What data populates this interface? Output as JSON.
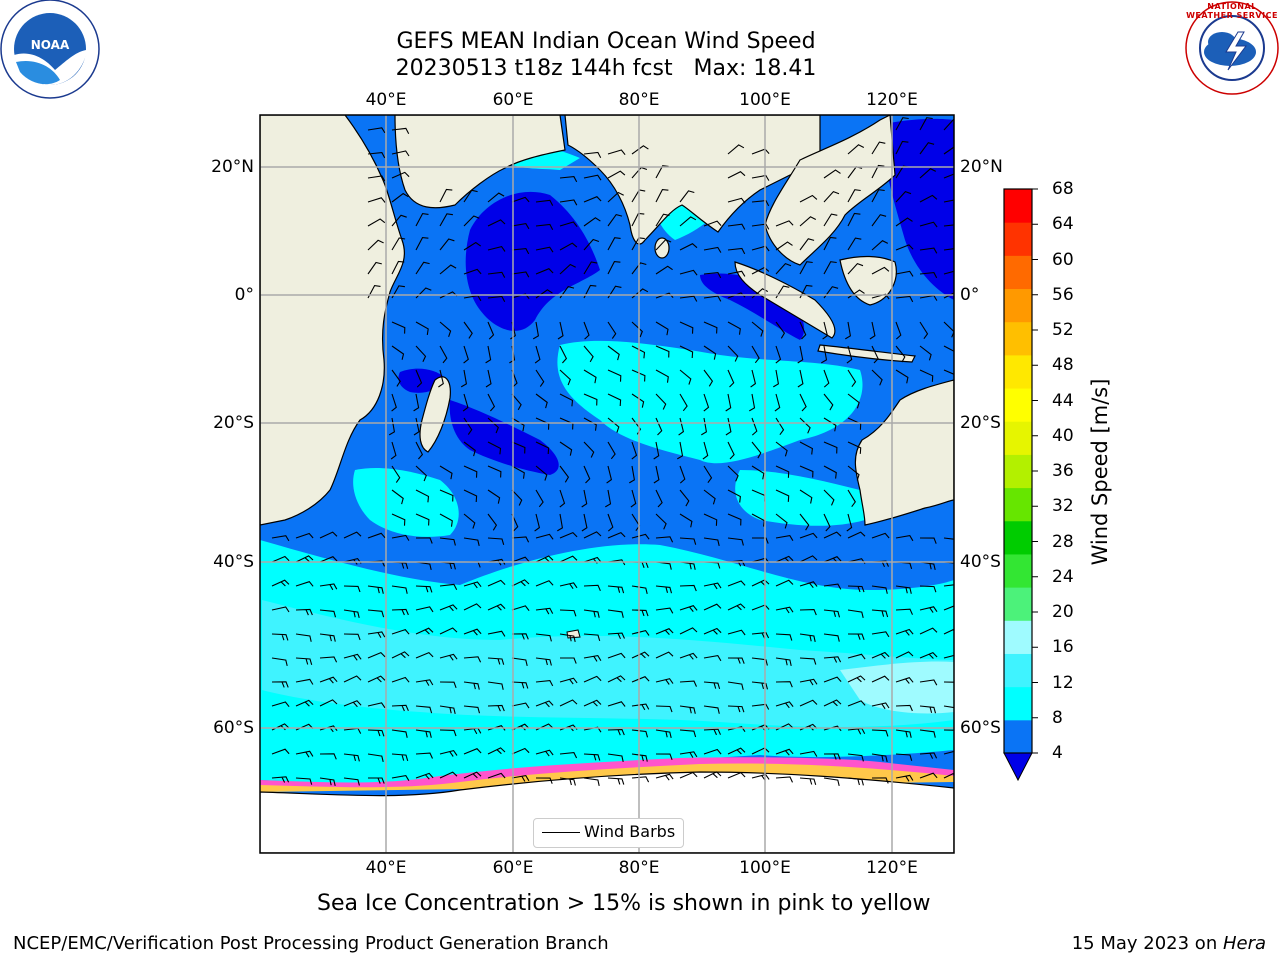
{
  "title": {
    "line1": "GEFS MEAN Indian Ocean Wind Speed",
    "line2": "20230513 t18z 144h fcst   Max: 18.41"
  },
  "map": {
    "lon_ticks_top": [
      "40°E",
      "60°E",
      "80°E",
      "100°E",
      "120°E"
    ],
    "lon_ticks_bottom": [
      "40°E",
      "60°E",
      "80°E",
      "100°E",
      "120°E"
    ],
    "lat_ticks_left": [
      "20°N",
      "0°",
      "20°S",
      "40°S",
      "60°S"
    ],
    "lat_ticks_right": [
      "20°N",
      "0°",
      "20°S",
      "40°S",
      "60°S"
    ],
    "legend_label": "Wind Barbs",
    "colors": {
      "land": "#efefdf",
      "ice": "#ffffff",
      "speed_4_8": "#0a74f5",
      "speed_8_12": "#00ffff",
      "speed_12_16": "#2fe6f5",
      "speed_0_4": "#0000e8"
    }
  },
  "colorbar": {
    "label": "Wind Speed [m/s]",
    "ticks": [
      "68",
      "64",
      "60",
      "56",
      "52",
      "48",
      "44",
      "40",
      "36",
      "32",
      "28",
      "24",
      "20",
      "16",
      "12",
      "8",
      "4"
    ],
    "colors": [
      "#0a74f5",
      "#00ffff",
      "#3ff3ff",
      "#9ffbff",
      "#4cf27a",
      "#33e633",
      "#00cc00",
      "#66e600",
      "#b3f000",
      "#e6f500",
      "#ffff00",
      "#ffe800",
      "#ffbf00",
      "#ff9900",
      "#ff6a00",
      "#ff3300",
      "#ff0000"
    ],
    "under_color": "#0000e8"
  },
  "logos": {
    "noaa_text": "NOAA",
    "nws_ring_text": "NATIONAL WEATHER SERVICE"
  },
  "ice_note": "Sea Ice Concentration > 15% is shown in pink to yellow",
  "footer": {
    "left": "NCEP/EMC/Verification Post Processing Product Generation Branch",
    "date": "15 May 2023 on ",
    "machine": "Hera"
  }
}
